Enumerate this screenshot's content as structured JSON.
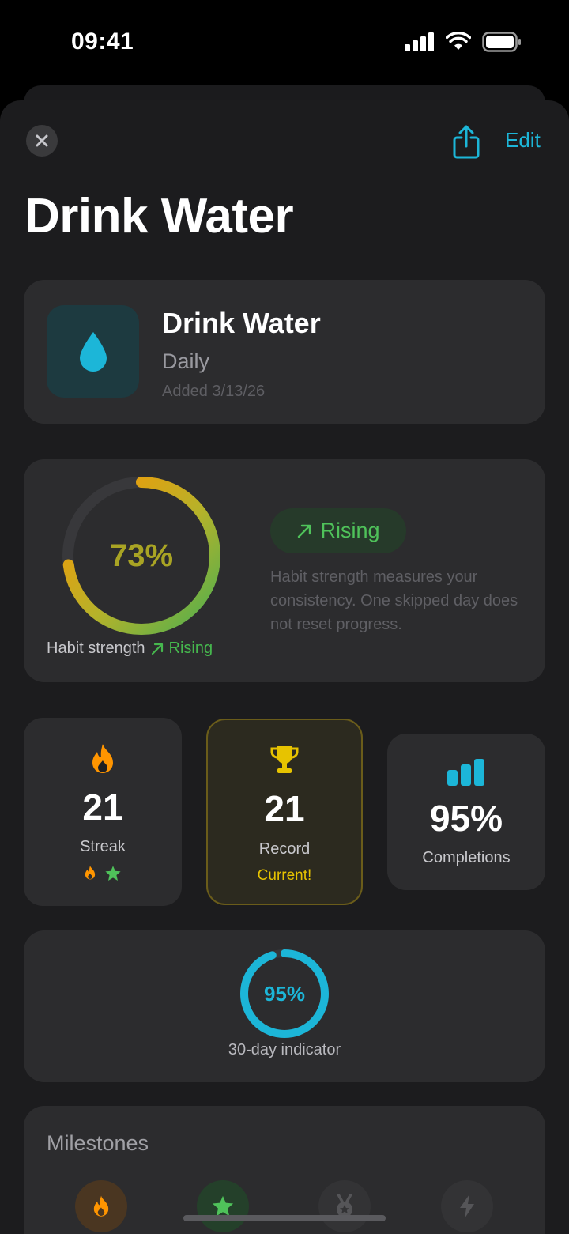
{
  "status": {
    "time": "09:41"
  },
  "nav": {
    "edit_label": "Edit"
  },
  "page": {
    "title": "Drink Water"
  },
  "habit": {
    "name": "Drink Water",
    "frequency": "Daily",
    "added": "Added 3/13/26",
    "icon": "water-drop-icon",
    "accent": "#1CB6D8"
  },
  "strength": {
    "percent": 73,
    "percent_label": "73%",
    "caption": "Habit strength",
    "trend_label": "Rising",
    "pill_label": "Rising",
    "description": "Habit strength measures your consistency. One skipped day does not reset progress."
  },
  "stats": {
    "streak": {
      "value": "21",
      "label": "Streak",
      "icon": "flame-icon"
    },
    "record": {
      "value": "21",
      "label": "Record",
      "sub": "Current!",
      "icon": "trophy-icon"
    },
    "completions": {
      "value": "95%",
      "label": "Completions",
      "icon": "bar-chart-icon"
    }
  },
  "day30": {
    "percent": 95,
    "percent_label": "95%",
    "label": "30-day indicator"
  },
  "milestones": {
    "title": "Milestones",
    "badges": [
      "flame-icon",
      "star-icon",
      "medal-icon",
      "bolt-icon"
    ]
  },
  "colors": {
    "orange": "#FF9500",
    "green": "#4FC25A",
    "gold": "#E7C300",
    "teal": "#1CB6D8"
  }
}
